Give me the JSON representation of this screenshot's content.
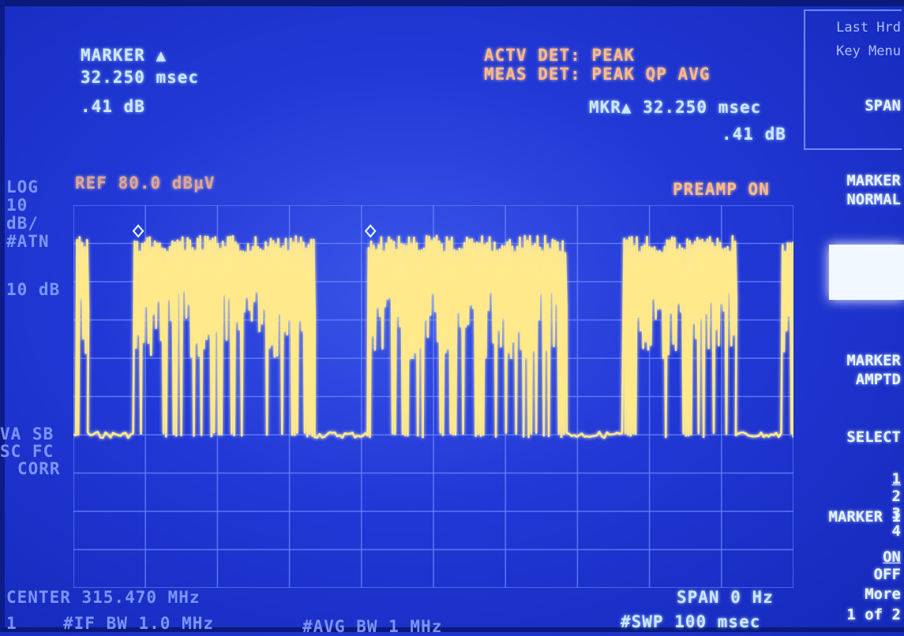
{
  "marker_readout": {
    "label": "MARKER ▲",
    "time": "32.250 msec",
    "amplitude": ".41 dB"
  },
  "detector": {
    "actv": "ACTV DET: PEAK",
    "meas": "MEAS DET: PEAK QP AVG"
  },
  "marker_delta": {
    "time": "MKR▲ 32.250 msec",
    "amplitude": ".41 dB"
  },
  "reference": {
    "ref_level": "REF 80.0 dBµV",
    "preamp": "PREAMP ON",
    "scale_log": "LOG",
    "scale_value": "10",
    "scale_unit": "dB/",
    "atten_label": "#ATN",
    "atten_value": "10 dB"
  },
  "left_indicators": {
    "line1": "VA SB",
    "line2": "SC FC",
    "line3": "CORR"
  },
  "bottom": {
    "center": "CENTER 315.470 MHz",
    "span": "SPAN 0 Hz",
    "if_bw": "#IF BW 1.0 MHz",
    "avg_bw": "#AVG BW 1 MHz",
    "sweep": "#SWP 100 msec",
    "bottom_left": "1"
  },
  "top_left_fragment": "",
  "softkeys": {
    "last_hrd_1": "Last Hrd",
    "last_hrd_2": "Key Menu",
    "span": "SPAN",
    "marker_normal_1": "MARKER",
    "marker_normal_2": "NORMAL",
    "marker_amptd_1": "MARKER",
    "marker_amptd_2": "AMPTD",
    "select_label": "SELECT",
    "select_options": [
      "1",
      "2",
      "3",
      "4"
    ],
    "select_active": "1",
    "marker1_label": "MARKER 1",
    "marker1_on": "ON",
    "marker1_off": "OFF",
    "more_1": "More",
    "more_2": "1 of 2"
  },
  "colors": {
    "screen_background": "#2238d6",
    "trace": "#ffe98a",
    "grid": "#6d8cff",
    "annotation_orange": "#ffb98a",
    "annotation_white": "#cfe6ff"
  },
  "chart_data": {
    "type": "line",
    "title": "",
    "xlabel": "",
    "ylabel": "",
    "x_span_ms": 100,
    "ylim_dBuV": [
      -20,
      80
    ],
    "grid": true,
    "grid_divisions": {
      "x": 10,
      "y": 10
    },
    "noise_floor_dBuV": 20,
    "pulse_top_dBuV": 72,
    "bursts_ms": [
      {
        "start": 0.5,
        "end": 2.0
      },
      {
        "start": 8.5,
        "end": 33.5
      },
      {
        "start": 41.0,
        "end": 68.5
      },
      {
        "start": 76.5,
        "end": 92.0
      },
      {
        "start": 98.5,
        "end": 100.0
      }
    ],
    "markers": [
      {
        "name": "reference",
        "x_ms": 9.0
      },
      {
        "name": "delta",
        "x_ms": 41.25
      }
    ]
  }
}
